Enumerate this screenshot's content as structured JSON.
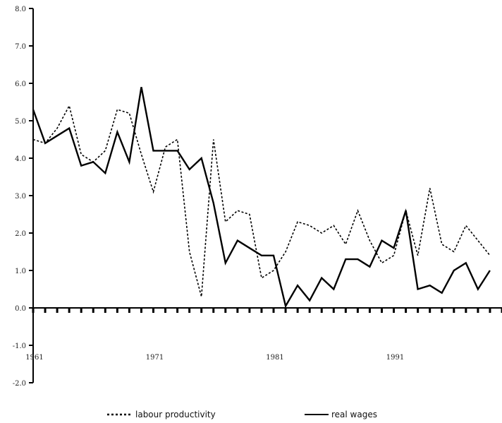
{
  "chart_data": {
    "type": "line",
    "title": "",
    "xlabel": "",
    "ylabel": "",
    "x": [
      1961,
      1962,
      1963,
      1964,
      1965,
      1966,
      1967,
      1968,
      1969,
      1970,
      1971,
      1972,
      1973,
      1974,
      1975,
      1976,
      1977,
      1978,
      1979,
      1980,
      1981,
      1982,
      1983,
      1984,
      1985,
      1986,
      1987,
      1988,
      1989,
      1990,
      1991,
      1992,
      1993,
      1994,
      1995,
      1996,
      1997,
      1998,
      1999,
      2000
    ],
    "xlim": [
      1961,
      2000
    ],
    "ylim": [
      -2.0,
      8.0
    ],
    "y_ticks": [
      "8.0",
      "7.0",
      "6.0",
      "5.0",
      "4.0",
      "3.0",
      "2.0",
      "1.0",
      "0.0",
      "-1.0",
      "-2.0"
    ],
    "x_ticks": [
      {
        "label": "1961",
        "value": 1961
      },
      {
        "label": "1971",
        "value": 1971
      },
      {
        "label": "1981",
        "value": 1981
      },
      {
        "label": "1991",
        "value": 1991
      }
    ],
    "grid": false,
    "legend_placement": "bottom",
    "series": [
      {
        "name": "labour productivity",
        "style": "dotted",
        "color": "#000000",
        "values": [
          4.5,
          4.4,
          4.8,
          5.4,
          4.1,
          3.9,
          4.2,
          5.3,
          5.2,
          4.1,
          3.1,
          4.3,
          4.5,
          1.5,
          0.3,
          4.5,
          2.3,
          2.6,
          2.5,
          0.8,
          1.0,
          1.5,
          2.3,
          2.2,
          2.0,
          2.2,
          1.7,
          2.6,
          1.8,
          1.2,
          1.4,
          2.6,
          1.4,
          3.2,
          1.7,
          1.5,
          2.2,
          1.8,
          1.4,
          null
        ]
      },
      {
        "name": "real wages",
        "style": "solid",
        "color": "#000000",
        "values": [
          5.3,
          4.4,
          4.6,
          4.8,
          3.8,
          3.9,
          3.6,
          4.7,
          3.9,
          5.9,
          4.2,
          4.2,
          4.2,
          3.7,
          4.0,
          2.8,
          1.2,
          1.8,
          1.6,
          1.4,
          1.4,
          0.05,
          0.6,
          0.2,
          0.8,
          0.5,
          1.3,
          1.3,
          1.1,
          1.8,
          1.6,
          2.6,
          0.5,
          0.6,
          0.4,
          1.0,
          1.2,
          0.5,
          1.0,
          null
        ]
      }
    ]
  },
  "legend": [
    {
      "label": "labour productivity",
      "style": "dotted"
    },
    {
      "label": "real wages",
      "style": "solid"
    }
  ]
}
